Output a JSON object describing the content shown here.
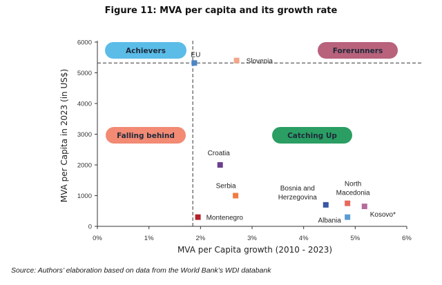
{
  "title": "Figure 11: MVA per capita and its growth rate",
  "source": "Source: Authors’ elaboration based on data from the World Bank’s WDI databank",
  "chart_data": {
    "type": "scatter",
    "xlabel": "MVA per Capita growth (2010 - 2023)",
    "ylabel": "MVA per Capita in 2023 (in US$)",
    "xlim": [
      0,
      6
    ],
    "ylim": [
      0,
      6000
    ],
    "x_ticks": [
      "0%",
      "1%",
      "2%",
      "3%",
      "4%",
      "5%",
      "6%"
    ],
    "y_ticks": [
      "0",
      "1000",
      "2000",
      "3000",
      "4000",
      "5000",
      "6000"
    ],
    "grid": false,
    "reference_lines": {
      "x": 1.85,
      "y": 5320
    },
    "points": [
      {
        "label": "EU",
        "x": 1.88,
        "y": 5320,
        "color": "#4a86c6"
      },
      {
        "label": "Slovenia",
        "x": 2.7,
        "y": 5400,
        "color": "#f4a58a"
      },
      {
        "label": "Croatia",
        "x": 2.38,
        "y": 2000,
        "color": "#6b3f8e"
      },
      {
        "label": "Serbia",
        "x": 2.68,
        "y": 1000,
        "color": "#f07c45"
      },
      {
        "label": "Montenegro",
        "x": 1.95,
        "y": 300,
        "color": "#b5222b"
      },
      {
        "label": "Bosnia and Herzegovina",
        "x": 4.43,
        "y": 700,
        "color": "#3b56a3"
      },
      {
        "label": "North Macedonia",
        "x": 4.85,
        "y": 750,
        "color": "#e8685a"
      },
      {
        "label": "Albania",
        "x": 4.85,
        "y": 300,
        "color": "#5a9bd5"
      },
      {
        "label": "Kosovo*",
        "x": 5.18,
        "y": 650,
        "color": "#b56b9e"
      }
    ],
    "quadrants": [
      {
        "label": "Achievers",
        "color": "#5bbce8"
      },
      {
        "label": "Forerunners",
        "color": "#b8627c"
      },
      {
        "label": "Falling behind",
        "color": "#f28a74"
      },
      {
        "label": "Catching Up",
        "color": "#2a9e63"
      }
    ]
  }
}
